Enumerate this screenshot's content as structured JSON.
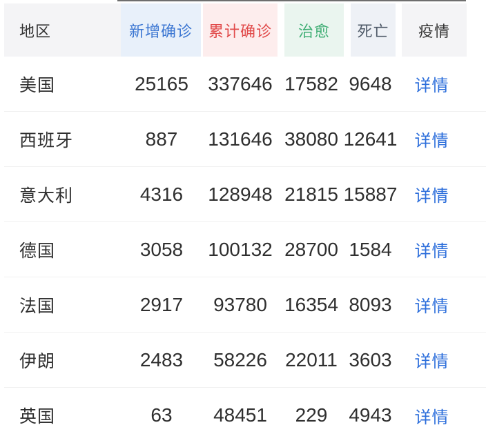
{
  "table": {
    "columns": [
      {
        "key": "region",
        "label": "地区",
        "text_color": "#333333",
        "bg_color": "#f4f4f6"
      },
      {
        "key": "new_confirmed",
        "label": "新增确诊",
        "text_color": "#3b76d2",
        "bg_color": "#e8f0fa"
      },
      {
        "key": "total_confirmed",
        "label": "累计确诊",
        "text_color": "#e14b4b",
        "bg_color": "#fdeded"
      },
      {
        "key": "cured",
        "label": "治愈",
        "text_color": "#3fae74",
        "bg_color": "#eaf5ef"
      },
      {
        "key": "deaths",
        "label": "死亡",
        "text_color": "#4f5a68",
        "bg_color": "#eef1f6"
      },
      {
        "key": "detail",
        "label": "疫情",
        "text_color": "#333333",
        "bg_color": "#f4f4f6"
      }
    ],
    "link_color": "#2c6edb",
    "divider_color": "#f0f0f0",
    "rows": [
      {
        "region": "美国",
        "new_confirmed": "25165",
        "total_confirmed": "337646",
        "cured": "17582",
        "deaths": "9648",
        "detail_label": "详情"
      },
      {
        "region": "西班牙",
        "new_confirmed": "887",
        "total_confirmed": "131646",
        "cured": "38080",
        "deaths": "12641",
        "detail_label": "详情"
      },
      {
        "region": "意大利",
        "new_confirmed": "4316",
        "total_confirmed": "128948",
        "cured": "21815",
        "deaths": "15887",
        "detail_label": "详情"
      },
      {
        "region": "德国",
        "new_confirmed": "3058",
        "total_confirmed": "100132",
        "cured": "28700",
        "deaths": "1584",
        "detail_label": "详情"
      },
      {
        "region": "法国",
        "new_confirmed": "2917",
        "total_confirmed": "93780",
        "cured": "16354",
        "deaths": "8093",
        "detail_label": "详情"
      },
      {
        "region": "伊朗",
        "new_confirmed": "2483",
        "total_confirmed": "58226",
        "cured": "22011",
        "deaths": "3603",
        "detail_label": "详情"
      },
      {
        "region": "英国",
        "new_confirmed": "63",
        "total_confirmed": "48451",
        "cured": "229",
        "deaths": "4943",
        "detail_label": "详情"
      }
    ]
  }
}
